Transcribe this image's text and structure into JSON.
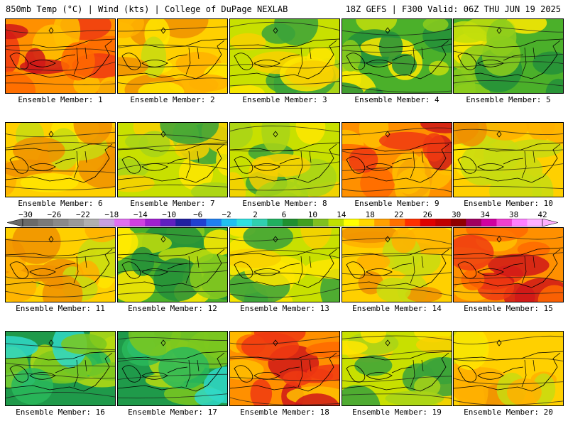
{
  "header": {
    "left": "850mb Temp (°C) | Wind (kts) | College of DuPage NEXLAB",
    "right": "18Z GEFS | F300 Valid: 06Z THU JUN 19 2025"
  },
  "label_prefix": "Ensemble Member:",
  "members": [
    {
      "id": "1",
      "tone": "hot"
    },
    {
      "id": "2",
      "tone": "warm"
    },
    {
      "id": "3",
      "tone": "mild"
    },
    {
      "id": "4",
      "tone": "cool"
    },
    {
      "id": "5",
      "tone": "cool"
    },
    {
      "id": "6",
      "tone": "warm"
    },
    {
      "id": "7",
      "tone": "mild"
    },
    {
      "id": "8",
      "tone": "mild"
    },
    {
      "id": "9",
      "tone": "hot"
    },
    {
      "id": "10",
      "tone": "warm"
    },
    {
      "id": "11",
      "tone": "warm"
    },
    {
      "id": "12",
      "tone": "cool"
    },
    {
      "id": "13",
      "tone": "mild"
    },
    {
      "id": "14",
      "tone": "warm"
    },
    {
      "id": "15",
      "tone": "hot"
    },
    {
      "id": "16",
      "tone": "cold"
    },
    {
      "id": "17",
      "tone": "cold"
    },
    {
      "id": "18",
      "tone": "hot"
    },
    {
      "id": "19",
      "tone": "mild"
    },
    {
      "id": "20",
      "tone": "warm"
    }
  ],
  "colorbar": {
    "ticks": [
      "−30",
      "−26",
      "−22",
      "−18",
      "−14",
      "−10",
      "−6",
      "−2",
      "2",
      "6",
      "10",
      "14",
      "18",
      "22",
      "26",
      "30",
      "34",
      "38",
      "42"
    ],
    "colors": [
      "#6a6a6a",
      "#7a7a7a",
      "#8a8a8a",
      "#9a9a9a",
      "#b0b0b0",
      "#c8a0e0",
      "#e070f0",
      "#d040e0",
      "#a020d0",
      "#6020c0",
      "#2020a0",
      "#2040d0",
      "#2080f0",
      "#20c0f0",
      "#30e0e0",
      "#30d0b0",
      "#20b060",
      "#209030",
      "#40a020",
      "#80c020",
      "#c0e000",
      "#ffff00",
      "#ffd700",
      "#ffa000",
      "#ff7000",
      "#ff3000",
      "#e00000",
      "#c00000",
      "#900000",
      "#a00060",
      "#d000a0",
      "#f040d0",
      "#ff80ff",
      "#ffb0ff"
    ]
  },
  "palette": {
    "cold": [
      "#1f9a4a",
      "#2ab85a",
      "#30d8c8",
      "#7cc81e",
      "#b8dc10"
    ],
    "cool": [
      "#4bb02a",
      "#23913a",
      "#8ccc1c",
      "#c2de0c",
      "#ffea00"
    ],
    "mild": [
      "#c8e000",
      "#ffe600",
      "#f8d000",
      "#a8d418",
      "#3aa23a"
    ],
    "warm": [
      "#ffd000",
      "#ffb000",
      "#f09000",
      "#ffe600",
      "#c8dc10"
    ],
    "hot": [
      "#ff9000",
      "#ff6a00",
      "#f03a10",
      "#d01818",
      "#ffc000"
    ]
  }
}
